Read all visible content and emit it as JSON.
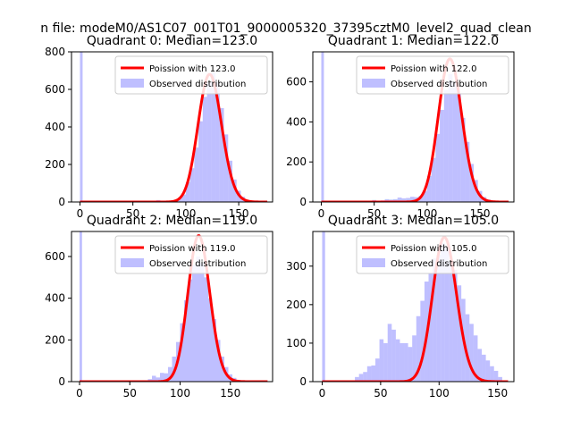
{
  "figure": {
    "suptitle": "n file: modeM0/AS1C07_001T01_9000005320_37395cztM0_level2_quad_clean"
  },
  "colors": {
    "poisson_line": "#ff0000",
    "observed_bar": "#8080ff",
    "observed_bar_opacity": 0.5,
    "legend_border": "#cccccc"
  },
  "chart_data": [
    {
      "type": "bar",
      "title": "Quadrant 0: Median=123.0",
      "legend": {
        "placement": "upper-right",
        "entries": [
          "Poission with 123.0",
          "Observed distribution"
        ]
      },
      "xlim": [
        -8,
        182
      ],
      "ylim": [
        0,
        800
      ],
      "xticks": [
        0,
        50,
        100,
        150
      ],
      "yticks": [
        0,
        200,
        400,
        600,
        800
      ],
      "poisson_mean": 123.0,
      "poisson_scale": 680,
      "spike": {
        "x": 0,
        "value": 800
      },
      "hist": {
        "bin_width": 4,
        "bins": [
          [
            72,
            10
          ],
          [
            76,
            6
          ],
          [
            80,
            7
          ],
          [
            84,
            6
          ],
          [
            88,
            8
          ],
          [
            92,
            18
          ],
          [
            96,
            40
          ],
          [
            100,
            105
          ],
          [
            104,
            180
          ],
          [
            108,
            290
          ],
          [
            112,
            430
          ],
          [
            116,
            560
          ],
          [
            120,
            640
          ],
          [
            124,
            690
          ],
          [
            128,
            640
          ],
          [
            132,
            500
          ],
          [
            136,
            360
          ],
          [
            140,
            220
          ],
          [
            144,
            120
          ],
          [
            148,
            60
          ],
          [
            152,
            28
          ],
          [
            156,
            12
          ],
          [
            160,
            6
          ]
        ]
      }
    },
    {
      "type": "bar",
      "title": "Quadrant 1: Median=122.0",
      "legend": {
        "placement": "upper-right",
        "entries": [
          "Poission with 122.0",
          "Observed distribution"
        ]
      },
      "xlim": [
        -8,
        182
      ],
      "ylim": [
        0,
        750
      ],
      "xticks": [
        0,
        50,
        100,
        150
      ],
      "yticks": [
        0,
        200,
        400,
        600
      ],
      "poisson_mean": 122.0,
      "poisson_scale": 715,
      "spike": {
        "x": 0,
        "value": 750
      },
      "hist": {
        "bin_width": 4,
        "bins": [
          [
            48,
            10
          ],
          [
            52,
            6
          ],
          [
            56,
            8
          ],
          [
            60,
            14
          ],
          [
            64,
            12
          ],
          [
            68,
            14
          ],
          [
            72,
            22
          ],
          [
            76,
            18
          ],
          [
            80,
            20
          ],
          [
            84,
            26
          ],
          [
            88,
            24
          ],
          [
            92,
            30
          ],
          [
            96,
            55
          ],
          [
            100,
            130
          ],
          [
            104,
            220
          ],
          [
            108,
            340
          ],
          [
            112,
            460
          ],
          [
            116,
            560
          ],
          [
            120,
            640
          ],
          [
            124,
            600
          ],
          [
            128,
            540
          ],
          [
            132,
            420
          ],
          [
            136,
            300
          ],
          [
            140,
            190
          ],
          [
            144,
            110
          ],
          [
            148,
            55
          ],
          [
            152,
            25
          ],
          [
            156,
            12
          ],
          [
            160,
            6
          ]
        ]
      }
    },
    {
      "type": "bar",
      "title": "Quadrant 2: Median=119.0",
      "legend": {
        "placement": "upper-right",
        "entries": [
          "Poission with 119.0",
          "Observed distribution"
        ]
      },
      "xlim": [
        -8,
        192
      ],
      "ylim": [
        0,
        720
      ],
      "xticks": [
        0,
        50,
        100,
        150
      ],
      "yticks": [
        0,
        200,
        400,
        600
      ],
      "poisson_mean": 119.0,
      "poisson_scale": 700,
      "spike": {
        "x": 0,
        "value": 720
      },
      "hist": {
        "bin_width": 4,
        "bins": [
          [
            68,
            12
          ],
          [
            72,
            28
          ],
          [
            76,
            20
          ],
          [
            80,
            42
          ],
          [
            84,
            40
          ],
          [
            88,
            70
          ],
          [
            92,
            120
          ],
          [
            96,
            190
          ],
          [
            100,
            280
          ],
          [
            104,
            390
          ],
          [
            108,
            490
          ],
          [
            112,
            560
          ],
          [
            116,
            600
          ],
          [
            120,
            570
          ],
          [
            124,
            500
          ],
          [
            128,
            400
          ],
          [
            132,
            300
          ],
          [
            136,
            200
          ],
          [
            140,
            120
          ],
          [
            144,
            70
          ],
          [
            148,
            35
          ],
          [
            152,
            18
          ],
          [
            156,
            8
          ],
          [
            160,
            4
          ]
        ]
      }
    },
    {
      "type": "bar",
      "title": "Quadrant 3: Median=105.0",
      "legend": {
        "placement": "upper-right",
        "entries": [
          "Poission with 105.0",
          "Observed distribution"
        ]
      },
      "xlim": [
        -8,
        164
      ],
      "ylim": [
        0,
        390
      ],
      "xticks": [
        0,
        50,
        100,
        150
      ],
      "yticks": [
        0,
        100,
        200,
        300
      ],
      "poisson_mean": 105.0,
      "poisson_scale": 375,
      "spike": {
        "x": 0,
        "value": 390
      },
      "hist": {
        "bin_width": 3.5,
        "bins": [
          [
            28,
            12
          ],
          [
            31.5,
            20
          ],
          [
            35,
            25
          ],
          [
            38.5,
            40
          ],
          [
            42,
            42
          ],
          [
            45.5,
            60
          ],
          [
            49,
            110
          ],
          [
            52.5,
            100
          ],
          [
            56,
            150
          ],
          [
            59.5,
            135
          ],
          [
            63,
            110
          ],
          [
            66.5,
            100
          ],
          [
            70,
            100
          ],
          [
            73.5,
            90
          ],
          [
            77,
            120
          ],
          [
            80.5,
            170
          ],
          [
            84,
            210
          ],
          [
            87.5,
            260
          ],
          [
            91,
            280
          ],
          [
            94.5,
            320
          ],
          [
            98,
            330
          ],
          [
            101.5,
            360
          ],
          [
            105,
            350
          ],
          [
            108.5,
            310
          ],
          [
            112,
            290
          ],
          [
            115.5,
            250
          ],
          [
            119,
            215
          ],
          [
            122.5,
            175
          ],
          [
            126,
            150
          ],
          [
            129.5,
            120
          ],
          [
            133,
            85
          ],
          [
            136.5,
            70
          ],
          [
            140,
            55
          ],
          [
            143.5,
            40
          ],
          [
            147,
            28
          ],
          [
            150.5,
            12
          ]
        ]
      }
    }
  ]
}
